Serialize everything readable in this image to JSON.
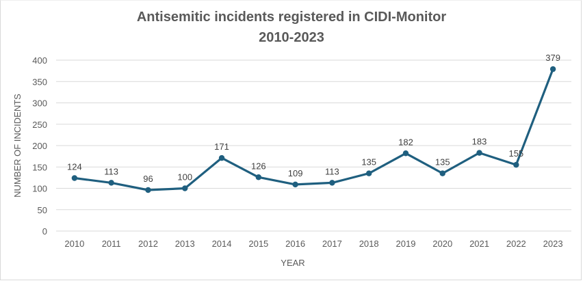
{
  "chart_data": {
    "type": "line",
    "title": "Antisemitic incidents registered in CIDI-Monitor",
    "subtitle": "2010-2023",
    "xlabel": "YEAR",
    "ylabel": "NUMBER OF INCIDENTS",
    "categories": [
      "2010",
      "2011",
      "2012",
      "2013",
      "2014",
      "2015",
      "2016",
      "2017",
      "2018",
      "2019",
      "2020",
      "2021",
      "2022",
      "2023"
    ],
    "series": [
      {
        "name": "Incidents",
        "values": [
          124,
          113,
          96,
          100,
          171,
          126,
          109,
          113,
          135,
          182,
          135,
          183,
          155,
          379
        ],
        "color": "#1f5f7f"
      }
    ],
    "ylim": [
      0,
      400
    ],
    "yticks": [
      0,
      50,
      100,
      150,
      200,
      250,
      300,
      350,
      400
    ],
    "grid": true,
    "legend": "none",
    "data_labels": true
  }
}
